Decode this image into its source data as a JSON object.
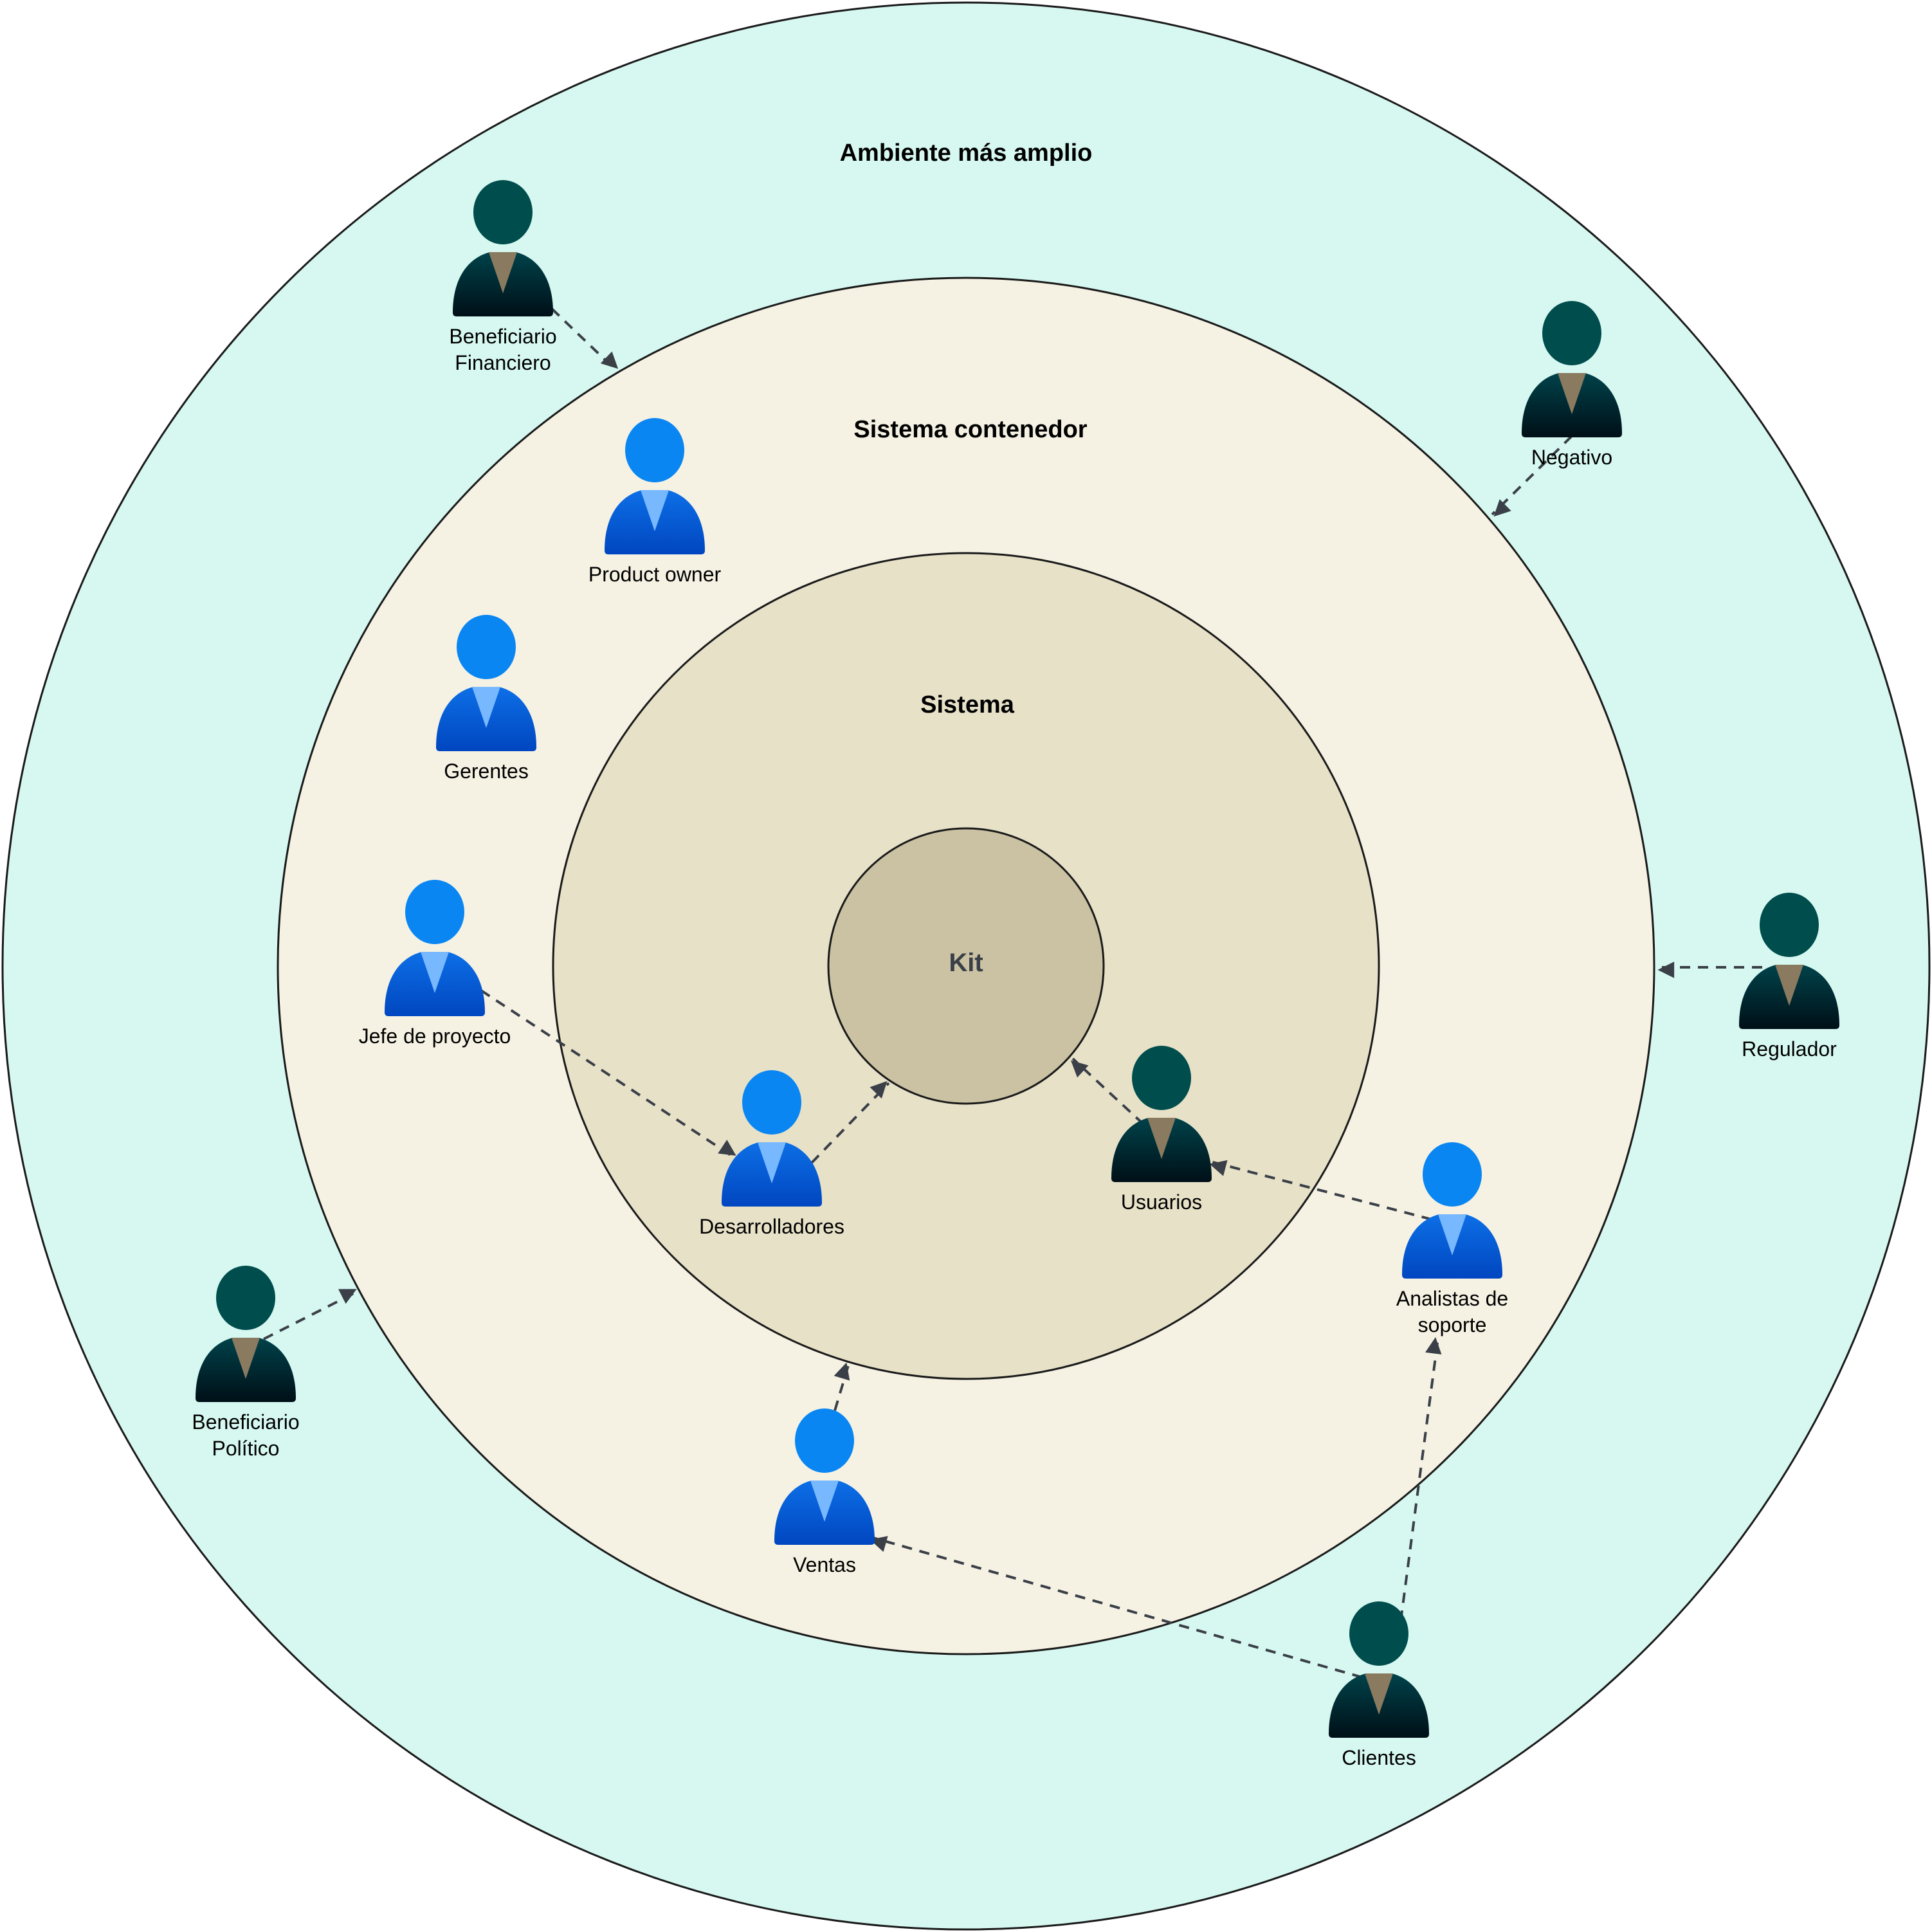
{
  "rings": [
    {
      "id": "ambiente",
      "title": "Ambiente más amplio",
      "fill": "#d6f8f1"
    },
    {
      "id": "contenedor",
      "title": "Sistema contenedor",
      "fill": "#f5f2e3"
    },
    {
      "id": "sistema",
      "title": "Sistema",
      "fill": "#e7e1c8"
    },
    {
      "id": "kit",
      "title": "Kit",
      "fill": "#cac2a3"
    }
  ],
  "colors": {
    "outline": "#1a1a1a",
    "arrow": "#3a3f48",
    "internal_head_top": "#0a86f2",
    "internal_body_top": "#0d6fe6",
    "internal_body_bottom": "#0046c0",
    "internal_tie": "#78b8ff",
    "external_head": "#004d4d",
    "external_body_top": "#00424a",
    "external_body_bottom": "#000f17",
    "external_tie": "#8a7a60"
  },
  "people": [
    {
      "id": "beneficiario-financiero",
      "type": "external",
      "label": [
        "Beneficiario",
        "Financiero"
      ]
    },
    {
      "id": "product-owner",
      "type": "internal",
      "label": [
        "Product owner"
      ]
    },
    {
      "id": "negativo",
      "type": "external",
      "label": [
        "Negativo"
      ]
    },
    {
      "id": "gerentes",
      "type": "internal",
      "label": [
        "Gerentes"
      ]
    },
    {
      "id": "jefe-de-proyecto",
      "type": "internal",
      "label": [
        "Jefe de proyecto"
      ]
    },
    {
      "id": "regulador",
      "type": "external",
      "label": [
        "Regulador"
      ]
    },
    {
      "id": "desarrolladores",
      "type": "internal",
      "label": [
        "Desarrolladores"
      ]
    },
    {
      "id": "usuarios",
      "type": "external",
      "label": [
        "Usuarios"
      ]
    },
    {
      "id": "analistas-de-soporte",
      "type": "internal",
      "label": [
        "Analistas de",
        "soporte"
      ]
    },
    {
      "id": "beneficiario-politico",
      "type": "external",
      "label": [
        "Beneficiario",
        "Político"
      ]
    },
    {
      "id": "ventas",
      "type": "internal",
      "label": [
        "Ventas"
      ]
    },
    {
      "id": "clientes",
      "type": "external",
      "label": [
        "Clientes"
      ]
    }
  ],
  "connections": [
    {
      "from": "beneficiario-financiero",
      "to": "ring:contenedor"
    },
    {
      "from": "negativo",
      "to": "ring:contenedor"
    },
    {
      "from": "regulador",
      "to": "ring:contenedor"
    },
    {
      "from": "beneficiario-politico",
      "to": "ring:contenedor"
    },
    {
      "from": "jefe-de-proyecto",
      "to": "desarrolladores"
    },
    {
      "from": "desarrolladores",
      "to": "ring:kit"
    },
    {
      "from": "usuarios",
      "to": "ring:kit"
    },
    {
      "from": "analistas-de-soporte",
      "to": "usuarios"
    },
    {
      "from": "ventas",
      "to": "ring:sistema"
    },
    {
      "from": "clientes",
      "to": "ventas"
    },
    {
      "from": "clientes",
      "to": "analistas-de-soporte"
    }
  ]
}
